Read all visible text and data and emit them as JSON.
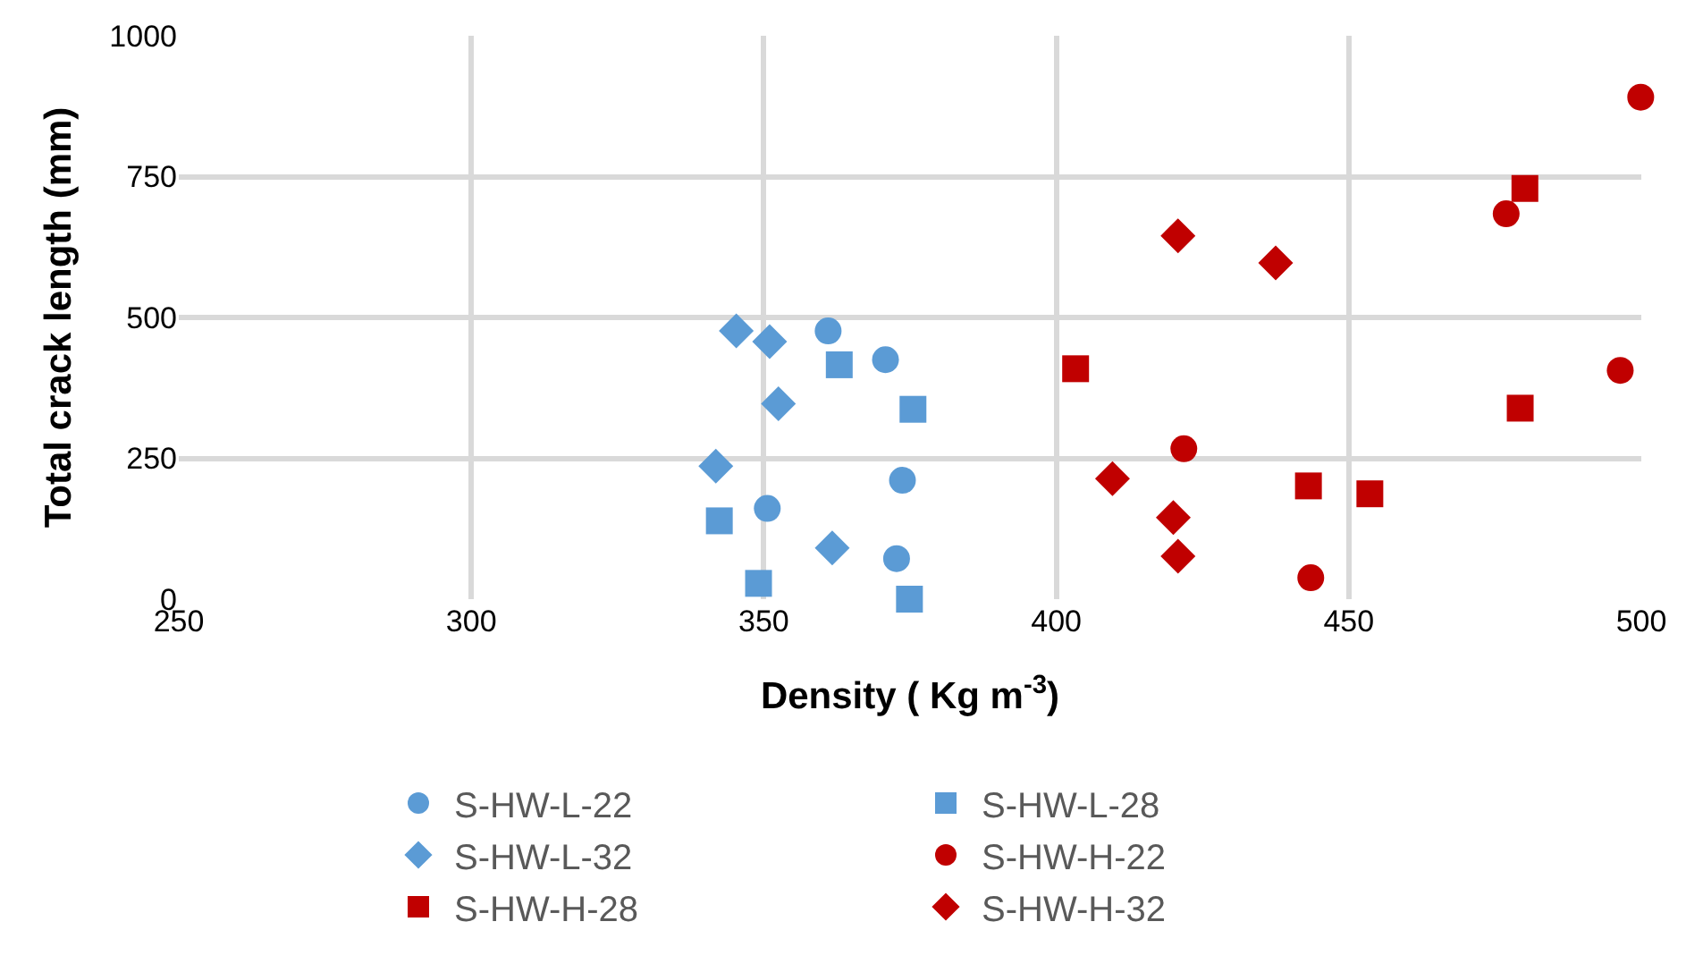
{
  "chart_data": {
    "type": "scatter",
    "xlabel": "Density ( Kg m$^{-3}$)",
    "ylabel": "Total crack length (mm)",
    "xlim": [
      250,
      500
    ],
    "xticks": [
      250,
      300,
      350,
      400,
      450,
      500
    ],
    "ylim": [
      0,
      1000
    ],
    "yticks": [
      0,
      250,
      500,
      750,
      1000
    ],
    "grid": true,
    "legend": "bottom",
    "series": [
      {
        "name": "S-HW-L-22",
        "color": "#5b9bd5",
        "marker": "circle",
        "x": [
          361,
          370.8,
          373.7,
          350.6,
          372.7
        ],
        "values": [
          476,
          425,
          211,
          161,
          72
        ]
      },
      {
        "name": "S-HW-L-28",
        "color": "#5b9bd5",
        "marker": "square",
        "x": [
          362.9,
          375.5,
          342.4,
          349.1,
          374.9
        ],
        "values": [
          416,
          337,
          139,
          28,
          0
        ]
      },
      {
        "name": "S-HW-L-32",
        "color": "#5b9bd5",
        "marker": "diamond",
        "x": [
          345.3,
          351,
          352.5,
          341.8,
          361.7
        ],
        "values": [
          476,
          457,
          347,
          236,
          91
        ]
      },
      {
        "name": "S-HW-H-22",
        "color": "#c00000",
        "marker": "circle",
        "x": [
          499.9,
          476.9,
          496.4,
          421.8,
          443.5
        ],
        "values": [
          891,
          684,
          406,
          267,
          38
        ]
      },
      {
        "name": "S-HW-H-28",
        "color": "#c00000",
        "marker": "square",
        "x": [
          480.1,
          403.3,
          479.3,
          443.1,
          453.6
        ],
        "values": [
          729,
          409,
          339,
          201,
          187
        ]
      },
      {
        "name": "S-HW-H-32",
        "color": "#c00000",
        "marker": "diamond",
        "x": [
          420.8,
          437.5,
          409.6,
          420,
          420.8
        ],
        "values": [
          645,
          597,
          214,
          145,
          76
        ]
      }
    ]
  }
}
